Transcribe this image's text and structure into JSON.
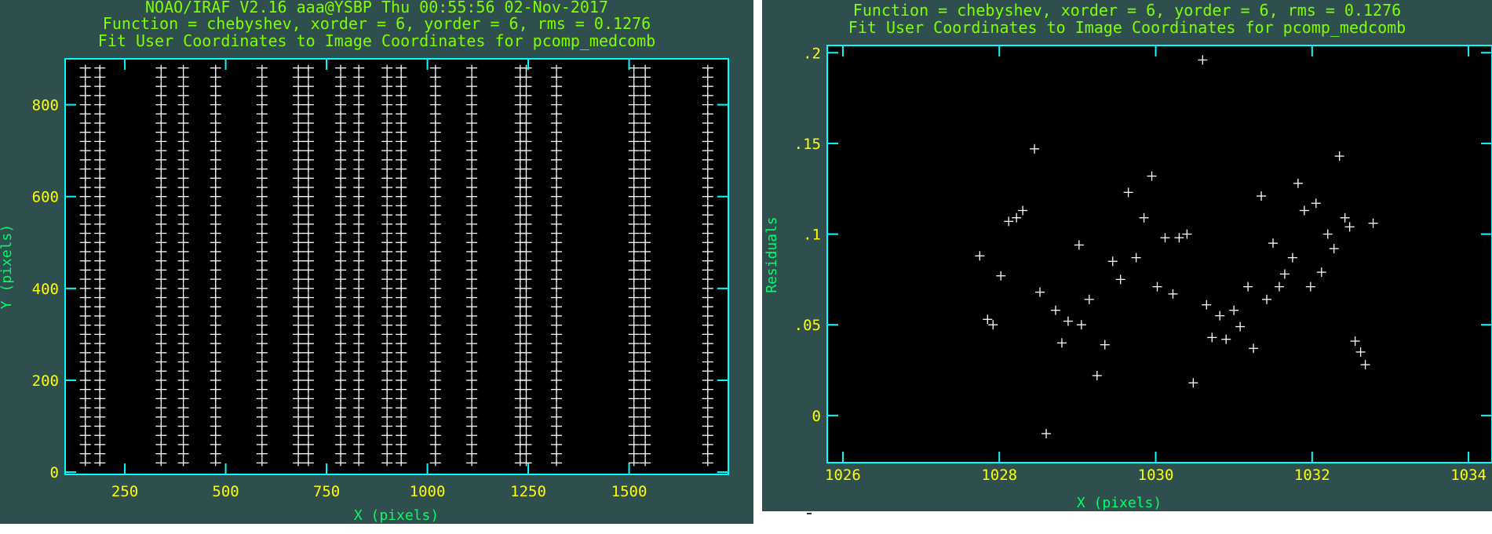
{
  "chart_data": [
    {
      "type": "scatter",
      "header": [
        "NOAO/IRAF V2.16 aaa@YSBP Thu 00:55:56 02-Nov-2017",
        "Function = chebyshev, xorder = 6, yorder = 6, rms = 0.1276",
        "Fit User Coordinates to Image Coordinates for pcomp_medcomb"
      ],
      "xlabel": "X (pixels)",
      "ylabel": "Y (pixels)",
      "xlim": [
        102,
        1746
      ],
      "ylim": [
        -5,
        900
      ],
      "xticks": [
        250,
        500,
        750,
        1000,
        1250,
        1500
      ],
      "yticks": [
        0,
        200,
        400,
        600,
        800
      ],
      "columns_x": [
        152,
        188,
        340,
        395,
        475,
        590,
        680,
        705,
        785,
        830,
        900,
        935,
        1020,
        1110,
        1230,
        1245,
        1320,
        1512,
        1540,
        1695
      ],
      "y_points": [
        20,
        40,
        60,
        80,
        100,
        120,
        140,
        160,
        180,
        200,
        220,
        240,
        260,
        280,
        300,
        320,
        340,
        360,
        380,
        400,
        420,
        440,
        460,
        480,
        500,
        520,
        540,
        560,
        580,
        600,
        620,
        640,
        660,
        680,
        700,
        720,
        740,
        760,
        780,
        800,
        820,
        840,
        860,
        880
      ],
      "marker": "plus"
    },
    {
      "type": "scatter",
      "header": [
        "Function = chebyshev, xorder = 6, yorder = 6, rms = 0.1276",
        "Fit User Coordinates to Image Coordinates for pcomp_medcomb"
      ],
      "xlabel": "X (pixels)",
      "ylabel": "Residuals",
      "xlim": [
        1025.8,
        1034.3
      ],
      "ylim": [
        -0.026,
        0.204
      ],
      "xticks": [
        1026,
        1028,
        1030,
        1032,
        1034
      ],
      "yticks": [
        0,
        0.05,
        0.1,
        0.15,
        0.2
      ],
      "ytick_labels": [
        "0",
        ".05",
        ".1",
        ".15",
        ".2"
      ],
      "points": [
        [
          1027.75,
          0.088
        ],
        [
          1027.85,
          0.053
        ],
        [
          1027.92,
          0.05
        ],
        [
          1028.02,
          0.077
        ],
        [
          1028.12,
          0.107
        ],
        [
          1028.22,
          0.109
        ],
        [
          1028.3,
          0.113
        ],
        [
          1028.45,
          0.147
        ],
        [
          1028.52,
          0.068
        ],
        [
          1028.6,
          -0.01
        ],
        [
          1028.72,
          0.058
        ],
        [
          1028.8,
          0.04
        ],
        [
          1028.88,
          0.052
        ],
        [
          1029.02,
          0.094
        ],
        [
          1029.05,
          0.05
        ],
        [
          1029.15,
          0.064
        ],
        [
          1029.25,
          0.022
        ],
        [
          1029.35,
          0.039
        ],
        [
          1029.45,
          0.085
        ],
        [
          1029.55,
          0.075
        ],
        [
          1029.65,
          0.123
        ],
        [
          1029.75,
          0.087
        ],
        [
          1029.85,
          0.109
        ],
        [
          1029.95,
          0.132
        ],
        [
          1030.02,
          0.071
        ],
        [
          1030.12,
          0.098
        ],
        [
          1030.22,
          0.067
        ],
        [
          1030.3,
          0.098
        ],
        [
          1030.4,
          0.1
        ],
        [
          1030.48,
          0.018
        ],
        [
          1030.6,
          0.196
        ],
        [
          1030.65,
          0.061
        ],
        [
          1030.72,
          0.043
        ],
        [
          1030.82,
          0.055
        ],
        [
          1030.9,
          0.042
        ],
        [
          1031.0,
          0.058
        ],
        [
          1031.08,
          0.049
        ],
        [
          1031.18,
          0.071
        ],
        [
          1031.25,
          0.037
        ],
        [
          1031.35,
          0.121
        ],
        [
          1031.42,
          0.064
        ],
        [
          1031.5,
          0.095
        ],
        [
          1031.58,
          0.071
        ],
        [
          1031.65,
          0.078
        ],
        [
          1031.75,
          0.087
        ],
        [
          1031.82,
          0.128
        ],
        [
          1031.9,
          0.113
        ],
        [
          1031.98,
          0.071
        ],
        [
          1032.05,
          0.117
        ],
        [
          1032.12,
          0.079
        ],
        [
          1032.2,
          0.1
        ],
        [
          1032.28,
          0.092
        ],
        [
          1032.35,
          0.143
        ],
        [
          1032.42,
          0.109
        ],
        [
          1032.48,
          0.104
        ],
        [
          1032.55,
          0.041
        ],
        [
          1032.62,
          0.035
        ],
        [
          1032.68,
          0.028
        ],
        [
          1032.78,
          0.106
        ]
      ],
      "marker": "plus"
    }
  ],
  "colors": {
    "panel_background": "#2f4f4f",
    "plot_background": "#000000",
    "frame": "#00ffff",
    "header_text": "#7fff00",
    "tick_label": "#ffff00",
    "axis_title": "#00ff66",
    "marker": "#ffffff"
  }
}
